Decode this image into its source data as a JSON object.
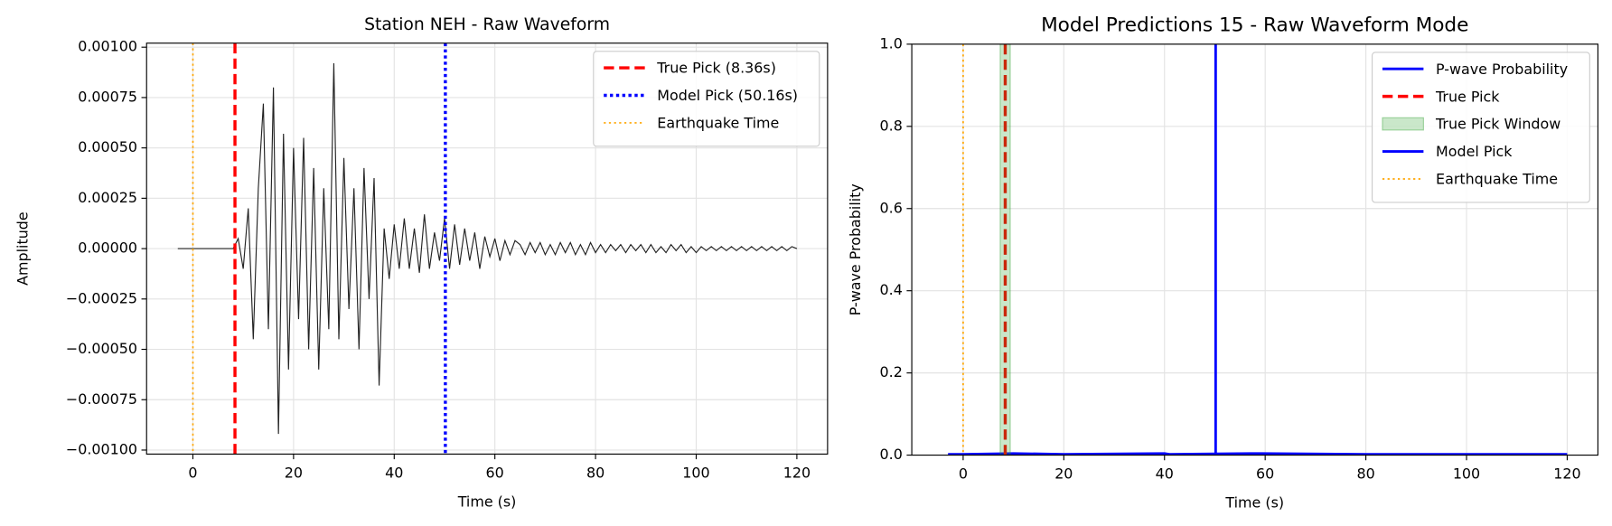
{
  "chart_data": [
    {
      "type": "line",
      "title": "Station NEH - Raw Waveform",
      "xlabel": "Time (s)",
      "ylabel": "Amplitude",
      "xlim": [
        -9.2,
        126.1
      ],
      "ylim": [
        -0.00102,
        0.00102
      ],
      "xticks": [
        0,
        20,
        40,
        60,
        80,
        100,
        120
      ],
      "yticks": [
        {
          "value": -0.001,
          "label": "−0.00100"
        },
        {
          "value": -0.00075,
          "label": "−0.00075"
        },
        {
          "value": -0.0005,
          "label": "−0.00050"
        },
        {
          "value": -0.00025,
          "label": "−0.00025"
        },
        {
          "value": 0,
          "label": "0.00000"
        },
        {
          "value": 0.00025,
          "label": "0.00025"
        },
        {
          "value": 0.0005,
          "label": "0.00050"
        },
        {
          "value": 0.00075,
          "label": "0.00075"
        },
        {
          "value": 0.001,
          "label": "0.00100"
        }
      ],
      "grid": true,
      "legend": "upper right",
      "layers": [
        {
          "kind": "line",
          "color": "#222222",
          "style": "solid",
          "x": [
            -3,
            -2,
            -1,
            0,
            1,
            2,
            3,
            4,
            5,
            6,
            7,
            8,
            9,
            10,
            11,
            12,
            13,
            14,
            15,
            16,
            17,
            18,
            19,
            20,
            21,
            22,
            23,
            24,
            25,
            26,
            27,
            28,
            29,
            30,
            31,
            32,
            33,
            34,
            35,
            36,
            37,
            38,
            39,
            40,
            41,
            42,
            43,
            44,
            45,
            46,
            47,
            48,
            49,
            50,
            51,
            52,
            53,
            54,
            55,
            56,
            57,
            58,
            59,
            60,
            61,
            62,
            63,
            64,
            65,
            66,
            67,
            68,
            69,
            70,
            71,
            72,
            73,
            74,
            75,
            76,
            77,
            78,
            79,
            80,
            81,
            82,
            83,
            84,
            85,
            86,
            87,
            88,
            89,
            90,
            91,
            92,
            93,
            94,
            95,
            96,
            97,
            98,
            99,
            100,
            101,
            102,
            103,
            104,
            105,
            106,
            107,
            108,
            109,
            110,
            111,
            112,
            113,
            114,
            115,
            116,
            117,
            118,
            119,
            120
          ],
          "values": [
            0,
            0,
            0,
            0,
            0,
            0,
            0,
            0,
            0,
            0,
            0,
            0,
            5e-05,
            -0.0001,
            0.0002,
            -0.00045,
            0.0003,
            0.00072,
            -0.0004,
            0.0008,
            -0.00092,
            0.00057,
            -0.0006,
            0.0005,
            -0.00035,
            0.00055,
            -0.0005,
            0.0004,
            -0.0006,
            0.0003,
            -0.0004,
            0.00092,
            -0.00045,
            0.00045,
            -0.0003,
            0.0003,
            -0.0005,
            0.0004,
            -0.00025,
            0.00035,
            -0.00068,
            0.0001,
            -0.00015,
            0.00012,
            -0.0001,
            0.00015,
            -0.0001,
            0.0001,
            -0.00012,
            0.00017,
            -0.0001,
            8e-05,
            -6e-05,
            0.00015,
            -0.0001,
            0.00012,
            -8e-05,
            0.0001,
            -6e-05,
            8e-05,
            -0.0001,
            6e-05,
            -4e-05,
            5e-05,
            -6e-05,
            4e-05,
            -3e-05,
            4e-05,
            2e-05,
            -3e-05,
            3e-05,
            -2e-05,
            3e-05,
            -3e-05,
            2e-05,
            -3e-05,
            3e-05,
            -2e-05,
            3e-05,
            -3e-05,
            2e-05,
            -3e-05,
            3e-05,
            -2e-05,
            2e-05,
            -2e-05,
            2e-05,
            -1e-05,
            2e-05,
            -2e-05,
            2e-05,
            -1e-05,
            2e-05,
            -2e-05,
            2e-05,
            -2e-05,
            1e-05,
            -2e-05,
            2e-05,
            -1e-05,
            2e-05,
            -2e-05,
            1e-05,
            -2e-05,
            1e-05,
            -1e-05,
            1e-05,
            -1e-05,
            1e-05,
            -1e-05,
            1e-05,
            -1e-05,
            1e-05,
            -1e-05,
            1e-05,
            -1e-05,
            1e-05,
            -1e-05,
            1e-05,
            -1e-05,
            1e-05,
            -1e-05,
            1e-05,
            0
          ]
        },
        {
          "kind": "vline",
          "name": "True Pick (8.36s)",
          "x": 8.36,
          "color": "#ff0000",
          "style": "dashed"
        },
        {
          "kind": "vline",
          "name": "Model Pick (50.16s)",
          "x": 50.16,
          "color": "#0000ff",
          "style": "dotted"
        },
        {
          "kind": "vline",
          "name": "Earthquake Time",
          "x": 0,
          "color": "#ffa500",
          "style": "fine-dotted"
        }
      ]
    },
    {
      "type": "line",
      "title": "Model Predictions 15 - Raw Waveform Mode",
      "xlabel": "Time (s)",
      "ylabel": "P-wave Probability",
      "xlim": [
        -10.2,
        126.1
      ],
      "ylim": [
        0,
        1
      ],
      "xticks": [
        0,
        20,
        40,
        60,
        80,
        100,
        120
      ],
      "yticks": [
        {
          "value": 0,
          "label": "0.0"
        },
        {
          "value": 0.2,
          "label": "0.2"
        },
        {
          "value": 0.4,
          "label": "0.4"
        },
        {
          "value": 0.6,
          "label": "0.6"
        },
        {
          "value": 0.8,
          "label": "0.8"
        },
        {
          "value": 1,
          "label": "1.0"
        }
      ],
      "grid": true,
      "legend": "upper right",
      "layers": [
        {
          "kind": "line",
          "name": "P-wave Probability",
          "color": "#0000ff",
          "style": "solid",
          "x": [
            -3,
            0,
            10,
            20,
            40,
            41,
            50,
            57,
            80,
            120
          ],
          "values": [
            0.002,
            0.002,
            0.004,
            0.002,
            0.004,
            0.002,
            0.003,
            0.004,
            0.002,
            0.002
          ]
        },
        {
          "kind": "vline",
          "name": "True Pick",
          "x": 8.36,
          "color": "#ff0000",
          "style": "dashed"
        },
        {
          "kind": "span",
          "name": "True Pick Window",
          "range": [
            7.36,
            9.36
          ],
          "color": "#2ca02c"
        },
        {
          "kind": "vline",
          "name": "Model Pick",
          "x": 50.16,
          "color": "#0000ff",
          "style": "solid"
        },
        {
          "kind": "vline",
          "name": "Earthquake Time",
          "x": 0,
          "color": "#ffa500",
          "style": "fine-dotted"
        }
      ]
    }
  ]
}
